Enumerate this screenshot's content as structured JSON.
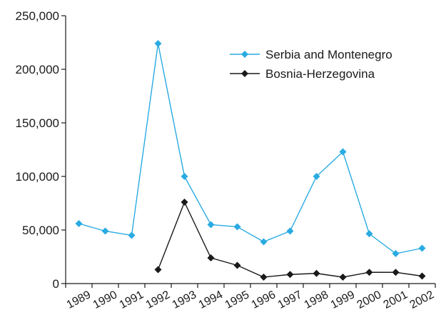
{
  "chart_data": {
    "type": "line",
    "title": "",
    "xlabel": "",
    "ylabel": "",
    "categories": [
      "1989",
      "1990",
      "1991",
      "1992",
      "1993",
      "1994",
      "1995",
      "1996",
      "1997",
      "1998",
      "1999",
      "2000",
      "2001",
      "2002"
    ],
    "y_ticks": [
      "0",
      "50,000",
      "100,000",
      "150,000",
      "200,000",
      "250,000"
    ],
    "ylim": [
      0,
      250000
    ],
    "grid": false,
    "legend_position": "top-right",
    "series": [
      {
        "name": "Serbia and Montenegro",
        "color": "#29abe2",
        "marker": "diamond",
        "values": [
          56000,
          49000,
          45000,
          224000,
          100000,
          55000,
          53000,
          39000,
          49000,
          100000,
          123000,
          46500,
          28000,
          33000
        ]
      },
      {
        "name": "Bosnia-Herzegovina",
        "color": "#1a1a1a",
        "marker": "diamond",
        "values": [
          null,
          null,
          null,
          13000,
          76000,
          24000,
          17000,
          6000,
          8500,
          9500,
          6000,
          10500,
          10500,
          7000
        ]
      }
    ]
  }
}
